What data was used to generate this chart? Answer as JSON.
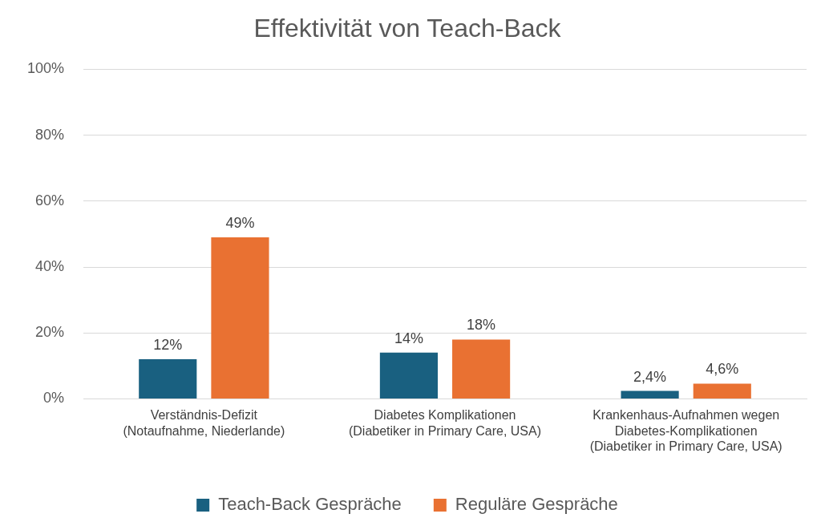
{
  "chart_data": {
    "type": "bar",
    "title": "Effektivität von Teach-Back",
    "categories": [
      "Verständnis-Defizit\n(Notaufnahme, Niederlande)",
      "Diabetes Komplikationen\n(Diabetiker in Primary Care, USA)",
      "Krankenhaus-Aufnahmen wegen\nDiabetes-Komplikationen\n(Diabetiker in Primary Care, USA)"
    ],
    "series": [
      {
        "name": "Teach-Back Gespräche",
        "color": "#196080",
        "values": [
          12,
          14,
          2.4
        ],
        "value_labels": [
          "12%",
          "14%",
          "2,4%"
        ]
      },
      {
        "name": "Reguläre Gespräche",
        "color": "#e97132",
        "values": [
          49,
          18,
          4.6
        ],
        "value_labels": [
          "49%",
          "18%",
          "4,6%"
        ]
      }
    ],
    "ylim": [
      0,
      100
    ],
    "yticks": [
      {
        "value": 0,
        "label": "0%"
      },
      {
        "value": 20,
        "label": "20%"
      },
      {
        "value": 40,
        "label": "40%"
      },
      {
        "value": 60,
        "label": "60%"
      },
      {
        "value": 80,
        "label": "80%"
      },
      {
        "value": 100,
        "label": "100%"
      }
    ],
    "grid": "y",
    "legend": "bottom"
  }
}
